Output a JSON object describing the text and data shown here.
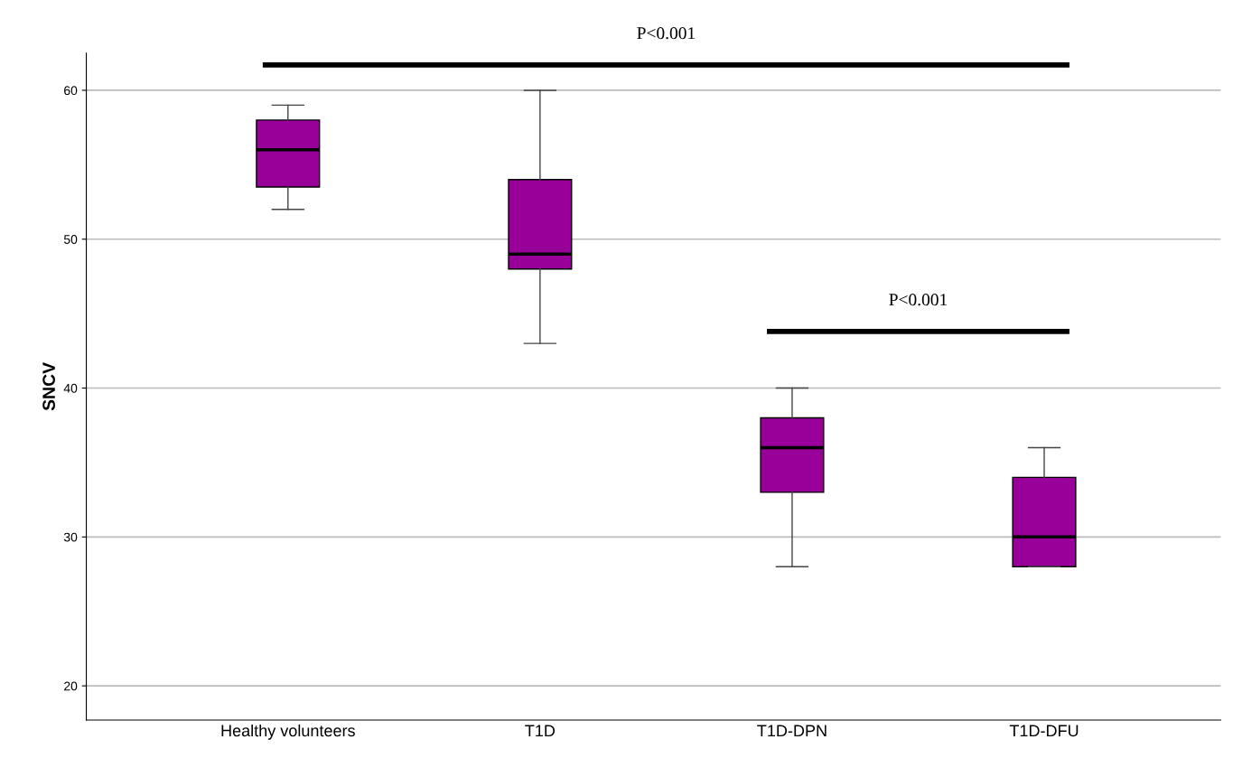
{
  "chart_data": {
    "type": "box",
    "ylabel": "SNCV",
    "categories": [
      "Healthy volunteers",
      "T1D",
      "T1D-DPN",
      "T1D-DFU"
    ],
    "color": "#990099",
    "boxes": [
      {
        "low": 52,
        "q1": 53.5,
        "median": 56,
        "q3": 58,
        "high": 59
      },
      {
        "low": 43,
        "q1": 48,
        "median": 49,
        "q3": 54,
        "high": 60
      },
      {
        "low": 28,
        "q1": 33,
        "median": 36,
        "q3": 38,
        "high": 40
      },
      {
        "low": 28,
        "q1": 28,
        "median": 30,
        "q3": 34,
        "high": 36
      }
    ],
    "ylim": [
      17.7,
      62.5
    ],
    "yticks": [
      20,
      30,
      40,
      50,
      60
    ],
    "grid": "y",
    "annotations": [
      "P<0.001",
      "P<0.001"
    ]
  }
}
